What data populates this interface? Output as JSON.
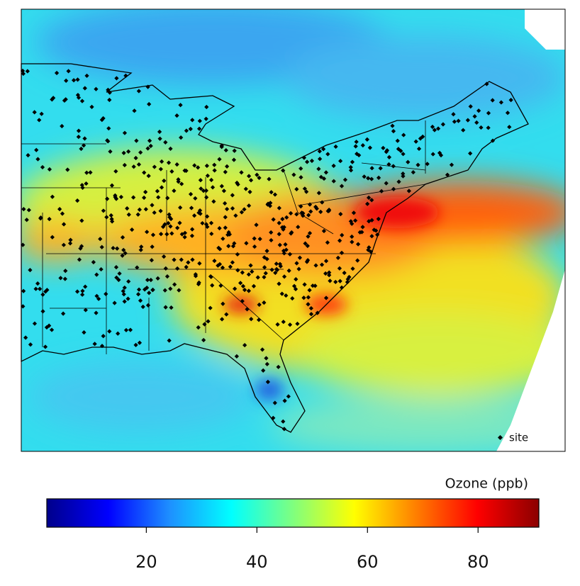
{
  "legend": {
    "label": "site"
  },
  "colorbar": {
    "title": "Ozone (ppb)",
    "lim": [
      2,
      91
    ],
    "ticks": [
      20,
      40,
      60,
      80
    ],
    "colors": [
      "#00008b",
      "#0000ff",
      "#1e90ff",
      "#00ffff",
      "#7fff7f",
      "#ffff00",
      "#ff7f00",
      "#ff0000",
      "#8b0000"
    ]
  }
}
